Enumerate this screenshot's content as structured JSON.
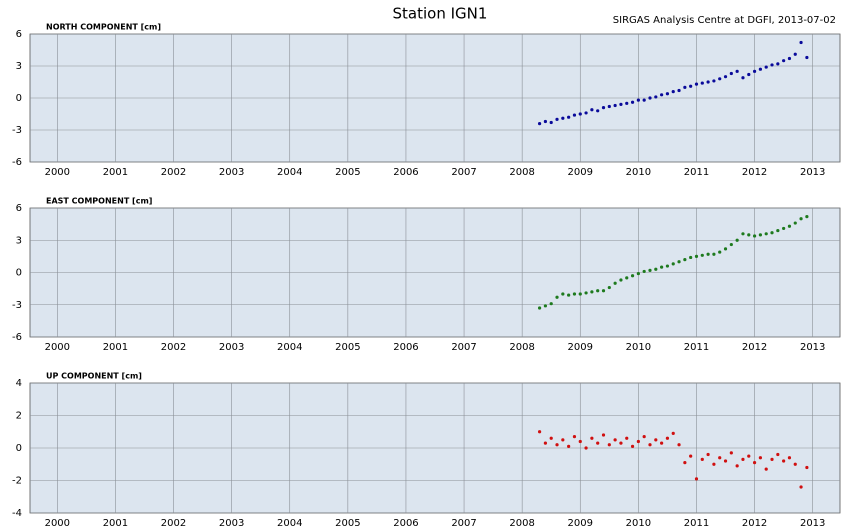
{
  "header": {
    "title": "Station IGN1",
    "credit": "SIRGAS Analysis Centre at DGFI, 2013-07-02"
  },
  "chart_data": [
    {
      "type": "scatter",
      "title": "NORTH COMPONENT [cm]",
      "color": "#0a0a9a",
      "title_color": "#1c1c8c",
      "background": "#dce5ef",
      "grid": true,
      "xlim": [
        1999.53,
        2013.47
      ],
      "ylim": [
        -6,
        6
      ],
      "xticks": [
        2000,
        2001,
        2002,
        2003,
        2004,
        2005,
        2006,
        2007,
        2008,
        2009,
        2010,
        2011,
        2012,
        2013
      ],
      "yticks": [
        -6,
        -3,
        0,
        3,
        6
      ],
      "x": [
        2008.3,
        2008.4,
        2008.5,
        2008.6,
        2008.7,
        2008.8,
        2008.9,
        2009.0,
        2009.1,
        2009.2,
        2009.3,
        2009.4,
        2009.5,
        2009.6,
        2009.7,
        2009.8,
        2009.9,
        2010.0,
        2010.1,
        2010.2,
        2010.3,
        2010.4,
        2010.5,
        2010.6,
        2010.7,
        2010.8,
        2010.9,
        2011.0,
        2011.1,
        2011.2,
        2011.3,
        2011.4,
        2011.5,
        2011.6,
        2011.7,
        2011.8,
        2011.9,
        2012.0,
        2012.1,
        2012.2,
        2012.3,
        2012.4,
        2012.5,
        2012.6,
        2012.7,
        2012.8,
        2012.9
      ],
      "values": [
        -2.4,
        -2.2,
        -2.3,
        -2.0,
        -1.9,
        -1.8,
        -1.6,
        -1.5,
        -1.4,
        -1.1,
        -1.2,
        -0.9,
        -0.8,
        -0.7,
        -0.6,
        -0.5,
        -0.4,
        -0.2,
        -0.2,
        0.0,
        0.1,
        0.3,
        0.4,
        0.6,
        0.7,
        1.0,
        1.1,
        1.3,
        1.4,
        1.5,
        1.6,
        1.8,
        2.0,
        2.3,
        2.5,
        1.9,
        2.2,
        2.5,
        2.7,
        2.9,
        3.1,
        3.2,
        3.5,
        3.7,
        4.1,
        5.2,
        3.8
      ]
    },
    {
      "type": "scatter",
      "title": "EAST COMPONENT [cm]",
      "color": "#1e7a1e",
      "title_color": "#1e6e1e",
      "background": "#dce5ef",
      "grid": true,
      "xlim": [
        1999.53,
        2013.47
      ],
      "ylim": [
        -6,
        6
      ],
      "xticks": [
        2000,
        2001,
        2002,
        2003,
        2004,
        2005,
        2006,
        2007,
        2008,
        2009,
        2010,
        2011,
        2012,
        2013
      ],
      "yticks": [
        -6,
        -3,
        0,
        3,
        6
      ],
      "x": [
        2008.3,
        2008.4,
        2008.5,
        2008.6,
        2008.7,
        2008.8,
        2008.9,
        2009.0,
        2009.1,
        2009.2,
        2009.3,
        2009.4,
        2009.5,
        2009.6,
        2009.7,
        2009.8,
        2009.9,
        2010.0,
        2010.1,
        2010.2,
        2010.3,
        2010.4,
        2010.5,
        2010.6,
        2010.7,
        2010.8,
        2010.9,
        2011.0,
        2011.1,
        2011.2,
        2011.3,
        2011.4,
        2011.5,
        2011.6,
        2011.7,
        2011.8,
        2011.9,
        2012.0,
        2012.1,
        2012.2,
        2012.3,
        2012.4,
        2012.5,
        2012.6,
        2012.7,
        2012.8,
        2012.9
      ],
      "values": [
        -3.3,
        -3.1,
        -2.9,
        -2.3,
        -2.0,
        -2.1,
        -2.0,
        -2.0,
        -1.9,
        -1.8,
        -1.7,
        -1.7,
        -1.4,
        -1.0,
        -0.7,
        -0.5,
        -0.3,
        -0.1,
        0.1,
        0.2,
        0.3,
        0.5,
        0.6,
        0.8,
        1.0,
        1.2,
        1.4,
        1.5,
        1.6,
        1.7,
        1.7,
        1.9,
        2.2,
        2.6,
        3.0,
        3.6,
        3.5,
        3.4,
        3.5,
        3.6,
        3.7,
        3.9,
        4.1,
        4.3,
        4.6,
        5.0,
        5.2
      ]
    },
    {
      "type": "scatter",
      "title": "UP COMPONENT [cm]",
      "color": "#d01010",
      "title_color": "#cc0000",
      "background": "#dce5ef",
      "grid": true,
      "xlim": [
        1999.53,
        2013.47
      ],
      "ylim": [
        -4,
        4
      ],
      "xticks": [
        2000,
        2001,
        2002,
        2003,
        2004,
        2005,
        2006,
        2007,
        2008,
        2009,
        2010,
        2011,
        2012,
        2013
      ],
      "yticks": [
        -4,
        -2,
        0,
        2,
        4
      ],
      "x": [
        2008.3,
        2008.4,
        2008.5,
        2008.6,
        2008.7,
        2008.8,
        2008.9,
        2009.0,
        2009.1,
        2009.2,
        2009.3,
        2009.4,
        2009.5,
        2009.6,
        2009.7,
        2009.8,
        2009.9,
        2010.0,
        2010.1,
        2010.2,
        2010.3,
        2010.4,
        2010.5,
        2010.6,
        2010.7,
        2010.8,
        2010.9,
        2011.0,
        2011.1,
        2011.2,
        2011.3,
        2011.4,
        2011.5,
        2011.6,
        2011.7,
        2011.8,
        2011.9,
        2012.0,
        2012.1,
        2012.2,
        2012.3,
        2012.4,
        2012.5,
        2012.6,
        2012.7,
        2012.8,
        2012.9
      ],
      "values": [
        1.0,
        0.3,
        0.6,
        0.2,
        0.5,
        0.1,
        0.7,
        0.4,
        0.0,
        0.6,
        0.3,
        0.8,
        0.2,
        0.5,
        0.3,
        0.6,
        0.1,
        0.4,
        0.7,
        0.2,
        0.5,
        0.3,
        0.6,
        0.9,
        0.2,
        -0.9,
        -0.5,
        -1.9,
        -0.7,
        -0.4,
        -1.0,
        -0.6,
        -0.8,
        -0.3,
        -1.1,
        -0.7,
        -0.5,
        -0.9,
        -0.6,
        -1.3,
        -0.7,
        -0.4,
        -0.8,
        -0.6,
        -1.0,
        -2.4,
        -1.2
      ]
    }
  ]
}
